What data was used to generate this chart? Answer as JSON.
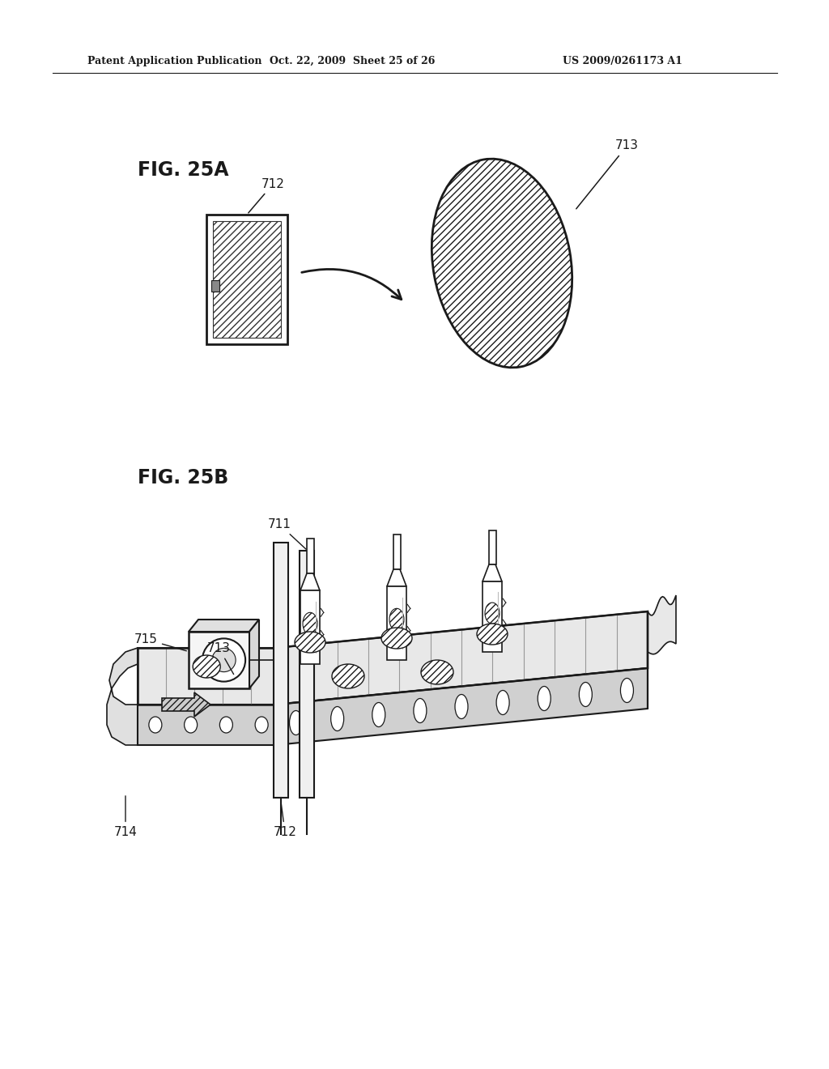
{
  "header_left": "Patent Application Publication",
  "header_mid": "Oct. 22, 2009  Sheet 25 of 26",
  "header_right": "US 2009/0261173 A1",
  "fig25a_label": "FIG. 25A",
  "fig25b_label": "FIG. 25B",
  "label_712_a": "712",
  "label_713_a": "713",
  "label_711": "711",
  "label_712_b": "712",
  "label_713_b": "713",
  "label_714": "714",
  "label_715": "715",
  "bg_color": "#ffffff",
  "line_color": "#1a1a1a"
}
